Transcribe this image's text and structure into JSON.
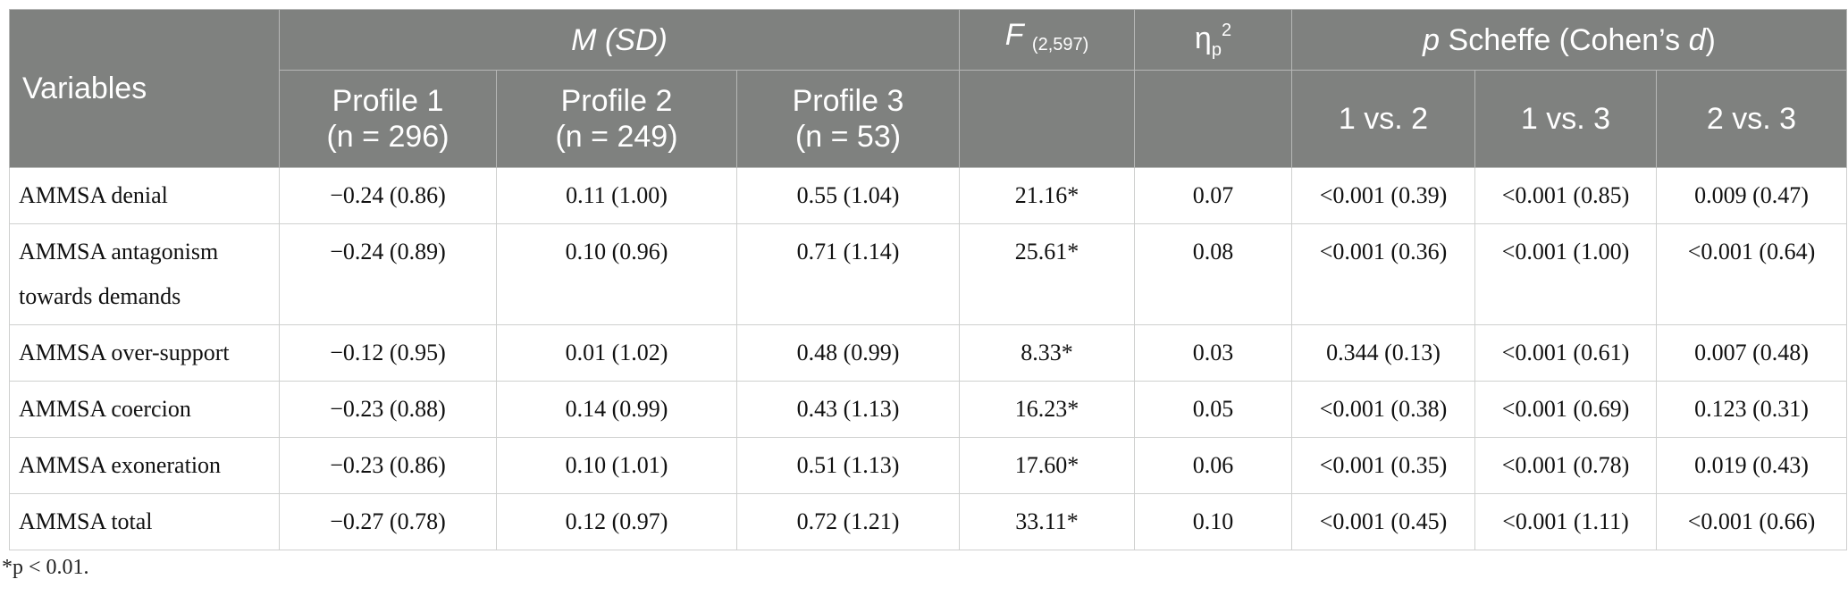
{
  "table": {
    "headers": {
      "variables": "Variables",
      "msd": "M (SD)",
      "f_label": "F",
      "f_df": "(2,597)",
      "eta_base": "η",
      "eta_sub": "p",
      "eta_sup": "2",
      "scheffe_p": "p",
      "scheffe_rest": " Scheffe (Cohen’s ",
      "scheffe_d": "d",
      "scheffe_close": ")",
      "profile1": "Profile 1",
      "profile1_n": "(n = 296)",
      "profile2": "Profile 2",
      "profile2_n": "(n = 249)",
      "profile3": "Profile 3",
      "profile3_n": "(n = 53)",
      "cmp12": "1 vs. 2",
      "cmp13": "1 vs. 3",
      "cmp23": "2 vs. 3"
    },
    "rows": [
      {
        "label": "AMMSA denial",
        "p1": "−0.24 (0.86)",
        "p2": "0.11 (1.00)",
        "p3": "0.55 (1.04)",
        "f": "21.16*",
        "eta": "0.07",
        "c12": "<0.001 (0.39)",
        "c13": "<0.001 (0.85)",
        "c23": "0.009 (0.47)"
      },
      {
        "label": "AMMSA antagonism towards demands",
        "p1": "−0.24 (0.89)",
        "p2": "0.10 (0.96)",
        "p3": "0.71 (1.14)",
        "f": "25.61*",
        "eta": "0.08",
        "c12": "<0.001 (0.36)",
        "c13": "<0.001 (1.00)",
        "c23": "<0.001 (0.64)"
      },
      {
        "label": "AMMSA over-support",
        "p1": "−0.12 (0.95)",
        "p2": "0.01 (1.02)",
        "p3": "0.48 (0.99)",
        "f": "8.33*",
        "eta": "0.03",
        "c12": "0.344 (0.13)",
        "c13": "<0.001 (0.61)",
        "c23": "0.007 (0.48)"
      },
      {
        "label": "AMMSA coercion",
        "p1": "−0.23 (0.88)",
        "p2": "0.14 (0.99)",
        "p3": "0.43 (1.13)",
        "f": "16.23*",
        "eta": "0.05",
        "c12": "<0.001 (0.38)",
        "c13": "<0.001 (0.69)",
        "c23": "0.123 (0.31)"
      },
      {
        "label": "AMMSA exoneration",
        "p1": "−0.23 (0.86)",
        "p2": "0.10 (1.01)",
        "p3": "0.51 (1.13)",
        "f": "17.60*",
        "eta": "0.06",
        "c12": "<0.001 (0.35)",
        "c13": "<0.001 (0.78)",
        "c23": "0.019 (0.43)"
      },
      {
        "label": "AMMSA total",
        "p1": "−0.27 (0.78)",
        "p2": "0.12 (0.97)",
        "p3": "0.72 (1.21)",
        "f": "33.11*",
        "eta": "0.10",
        "c12": "<0.001 (0.45)",
        "c13": "<0.001 (1.11)",
        "c23": "<0.001 (0.66)"
      }
    ],
    "footnote": "*p < 0.01."
  }
}
